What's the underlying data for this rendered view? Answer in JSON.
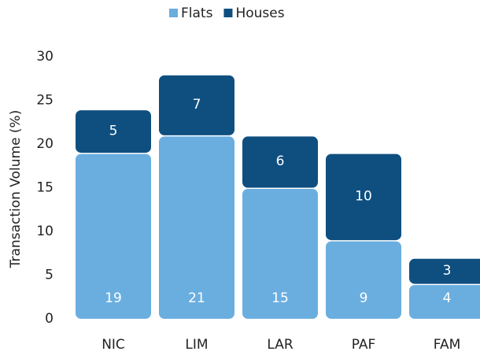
{
  "chart_data": {
    "type": "stacked_bar",
    "y_label": "Transaction Volume (%)",
    "categories": [
      "NIC",
      "LIM",
      "LAR",
      "PAF",
      "FAM"
    ],
    "series": [
      {
        "name": "Flats",
        "color": "#6aaee0",
        "values": [
          19,
          21,
          15,
          9,
          4
        ]
      },
      {
        "name": "Houses",
        "color": "#0f4f80",
        "values": [
          5,
          7,
          6,
          10,
          3
        ]
      }
    ],
    "ylim": [
      0,
      30
    ],
    "yticks": [
      0,
      5,
      10,
      15,
      20,
      25,
      30
    ],
    "legend": "top",
    "grid": false
  }
}
